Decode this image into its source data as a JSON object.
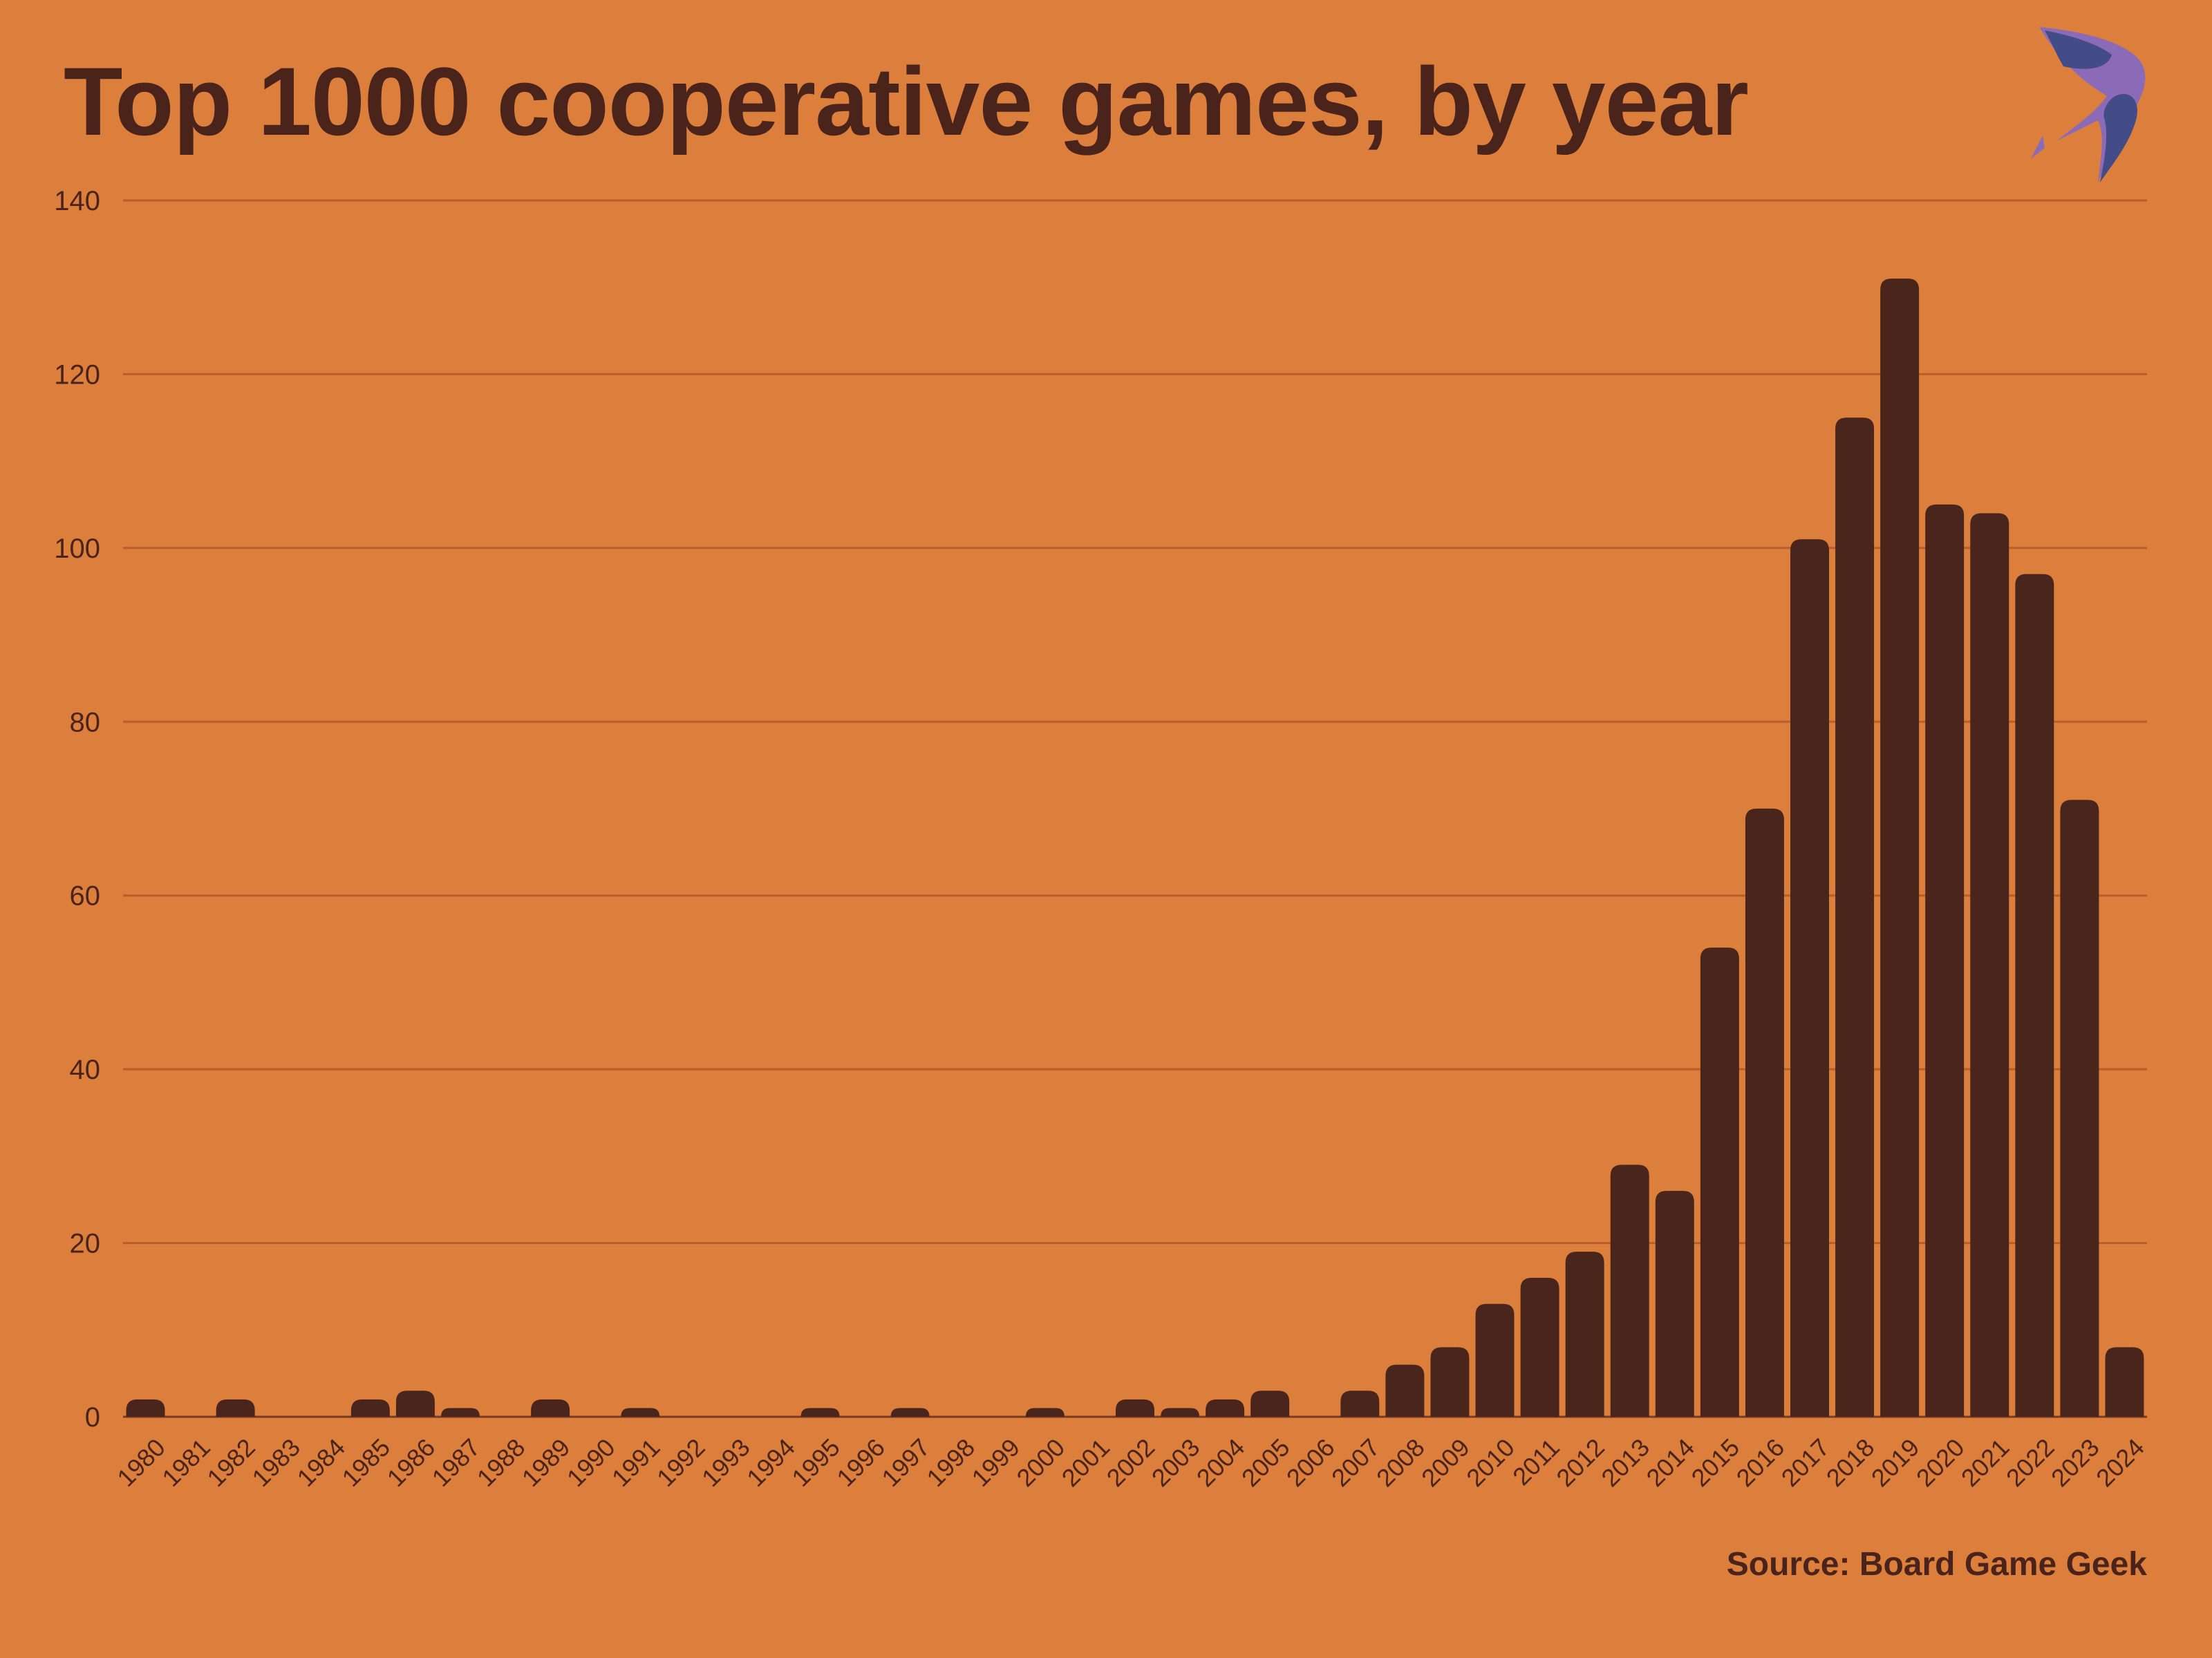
{
  "colors": {
    "background": "#dc7f3d",
    "bar": "#4a251b",
    "text": "#4a231b",
    "grid": "#b85e2c",
    "logo_dark": "#434c86",
    "logo_light": "#8b6bb8"
  },
  "logo": {
    "icon": "bird-logo-icon"
  },
  "source": "Source: Board Game Geek",
  "chart_data": {
    "type": "bar",
    "title": "Top 1000 cooperative games, by year",
    "xlabel": "",
    "ylabel": "",
    "ylim": [
      0,
      140
    ],
    "yticks": [
      0,
      20,
      40,
      60,
      80,
      100,
      120,
      140
    ],
    "grid": true,
    "legend": "none",
    "categories": [
      "1980",
      "1981",
      "1982",
      "1983",
      "1984",
      "1985",
      "1986",
      "1987",
      "1988",
      "1989",
      "1990",
      "1991",
      "1992",
      "1993",
      "1994",
      "1995",
      "1996",
      "1997",
      "1998",
      "1999",
      "2000",
      "2001",
      "2002",
      "2003",
      "2004",
      "2005",
      "2006",
      "2007",
      "2008",
      "2009",
      "2010",
      "2011",
      "2012",
      "2013",
      "2014",
      "2015",
      "2016",
      "2017",
      "2018",
      "2019",
      "2020",
      "2021",
      "2022",
      "2023",
      "2024"
    ],
    "values": [
      2,
      0,
      2,
      0,
      0,
      2,
      3,
      1,
      0,
      2,
      0,
      1,
      0,
      0,
      0,
      1,
      0,
      1,
      0,
      0,
      1,
      0,
      2,
      1,
      2,
      3,
      0,
      3,
      6,
      8,
      13,
      16,
      19,
      29,
      26,
      54,
      70,
      101,
      115,
      131,
      105,
      104,
      97,
      71,
      8
    ]
  }
}
